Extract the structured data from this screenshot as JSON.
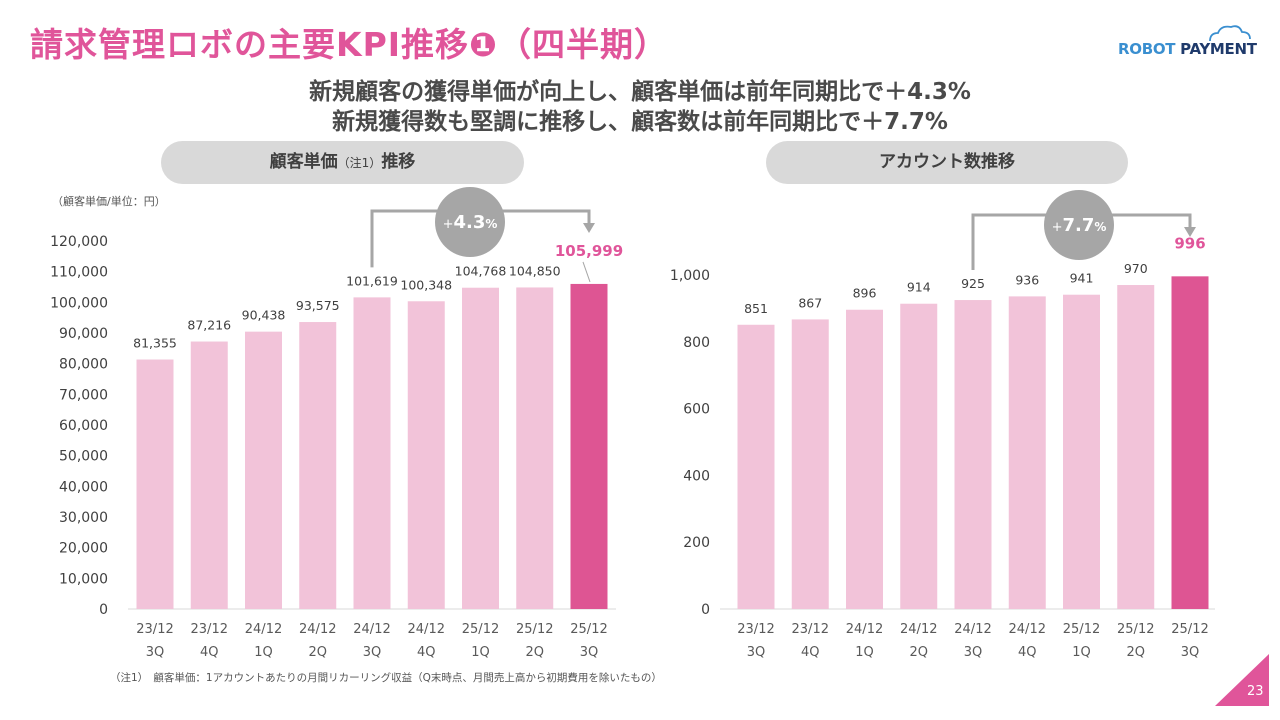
{
  "header": {
    "title": "請求管理ロボの主要KPI推移❶（四半期）",
    "logo": {
      "part1": "ROBOT",
      "part2": " PAYMENT",
      "icon": "cloud-icon"
    },
    "subtitle_line1": "新規顧客の獲得単価が向上し、顧客単価は前年同期比で＋4.3%",
    "subtitle_line2": "新規獲得数も堅調に推移し、顧客数は前年同期比で＋7.7%"
  },
  "colors": {
    "accent": "#e0559a",
    "bar_light": "#f2c3d9",
    "bar_highlight": "#de5593",
    "pill_bg": "#d9d9d9",
    "annotation_gray": "#a6a6a6"
  },
  "left_panel": {
    "heading_main": "顧客単価",
    "heading_note": "（注1）",
    "heading_suffix": "推移",
    "unit_label": "（顧客単価/単位：円）",
    "growth_badge_prefix": "+",
    "growth_badge_value": "4.3",
    "growth_badge_suffix": "%"
  },
  "right_panel": {
    "heading": "アカウント数推移",
    "growth_badge_prefix": "+",
    "growth_badge_value": "7.7",
    "growth_badge_suffix": "%"
  },
  "footnote": "（注1）　顧客単価：1アカウントあたりの月間リカーリング収益（Q末時点、月間売上高から初期費用を除いたもの）",
  "page_number": "23",
  "chart_data": [
    {
      "type": "bar",
      "title": "顧客単価（注1）推移",
      "ylabel": "（顧客単価/単位：円）",
      "xlabel": "",
      "categories": [
        [
          "23/12",
          "3Q"
        ],
        [
          "23/12",
          "4Q"
        ],
        [
          "24/12",
          "1Q"
        ],
        [
          "24/12",
          "2Q"
        ],
        [
          "24/12",
          "3Q"
        ],
        [
          "24/12",
          "4Q"
        ],
        [
          "25/12",
          "1Q"
        ],
        [
          "25/12",
          "2Q"
        ],
        [
          "25/12",
          "3Q"
        ]
      ],
      "values": [
        81355,
        87216,
        90438,
        93575,
        101619,
        100348,
        104768,
        104850,
        105999
      ],
      "value_labels": [
        "81,355",
        "87,216",
        "90,438",
        "93,575",
        "101,619",
        "100,348",
        "104,768",
        "104,850",
        "105,999"
      ],
      "highlight_index": 8,
      "yticks": [
        0,
        10000,
        20000,
        30000,
        40000,
        50000,
        60000,
        70000,
        80000,
        90000,
        100000,
        110000,
        120000
      ],
      "ytick_labels": [
        "0",
        "10,000",
        "20,000",
        "30,000",
        "40,000",
        "50,000",
        "60,000",
        "70,000",
        "80,000",
        "90,000",
        "100,000",
        "110,000",
        "120,000"
      ],
      "ylim": [
        0,
        120000
      ],
      "grid": false,
      "annotation": {
        "from_index": 4,
        "to_index": 8,
        "label": "+4.3%"
      }
    },
    {
      "type": "bar",
      "title": "アカウント数推移",
      "ylabel": "",
      "xlabel": "",
      "categories": [
        [
          "23/12",
          "3Q"
        ],
        [
          "23/12",
          "4Q"
        ],
        [
          "24/12",
          "1Q"
        ],
        [
          "24/12",
          "2Q"
        ],
        [
          "24/12",
          "3Q"
        ],
        [
          "24/12",
          "4Q"
        ],
        [
          "25/12",
          "1Q"
        ],
        [
          "25/12",
          "2Q"
        ],
        [
          "25/12",
          "3Q"
        ]
      ],
      "values": [
        851,
        867,
        896,
        914,
        925,
        936,
        941,
        970,
        996
      ],
      "value_labels": [
        "851",
        "867",
        "896",
        "914",
        "925",
        "936",
        "941",
        "970",
        "996"
      ],
      "highlight_index": 8,
      "yticks": [
        0,
        200,
        400,
        600,
        800,
        1000
      ],
      "ytick_labels": [
        "0",
        "200",
        "400",
        "600",
        "800",
        "1,000"
      ],
      "ylim": [
        0,
        1200
      ],
      "grid": false,
      "annotation": {
        "from_index": 4,
        "to_index": 8,
        "label": "+7.7%"
      }
    }
  ]
}
